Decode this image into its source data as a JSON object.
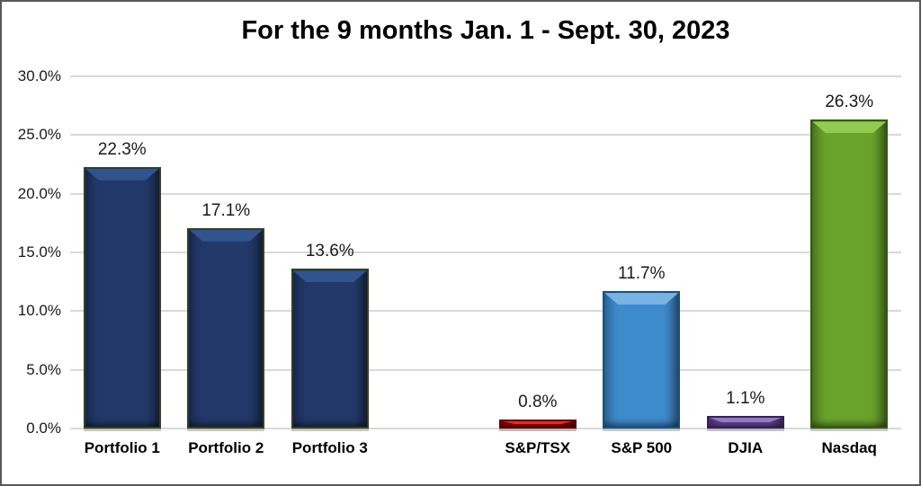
{
  "frame": {
    "background": "#ffffff",
    "border_color": "#595959"
  },
  "chart_data": {
    "type": "bar",
    "title": "For the 9 months Jan. 1 - Sept. 30, 2023",
    "xlabel": "",
    "ylabel": "",
    "ylim": [
      0,
      30
    ],
    "grid": true,
    "gridline_color": "#d9d9d9",
    "legend": "none",
    "yticks": [
      0,
      5,
      10,
      15,
      20,
      25,
      30
    ],
    "ytick_labels": [
      "0.0%",
      "5.0%",
      "10.0%",
      "15.0%",
      "20.0%",
      "25.0%",
      "30.0%"
    ],
    "categories": [
      "Portfolio 1",
      "Portfolio 2",
      "Portfolio 3",
      "",
      "S&P/TSX",
      "S&P 500",
      "DJIA",
      "Nasdaq"
    ],
    "values": [
      22.3,
      17.1,
      13.6,
      null,
      0.8,
      11.7,
      1.1,
      26.3
    ],
    "value_labels": [
      "22.3%",
      "17.1%",
      "13.6%",
      "",
      "0.8%",
      "11.7%",
      "1.1%",
      "26.3%"
    ],
    "bar_colors": [
      {
        "body": "#22396a",
        "light": "#32548e",
        "outline": "#333f21"
      },
      {
        "body": "#22396a",
        "light": "#32548e",
        "outline": "#333f21"
      },
      {
        "body": "#22396a",
        "light": "#32548e",
        "outline": "#333f21"
      },
      null,
      {
        "body": "#c00000",
        "light": "#dd2f2f",
        "outline": "#560808"
      },
      {
        "body": "#3e8bcc",
        "light": "#79b3e4",
        "outline": "#1e4e79"
      },
      {
        "body": "#6d4ba5",
        "light": "#9378c6",
        "outline": "#322352"
      },
      {
        "body": "#6aa32c",
        "light": "#92ca52",
        "outline": "#375617"
      }
    ]
  }
}
